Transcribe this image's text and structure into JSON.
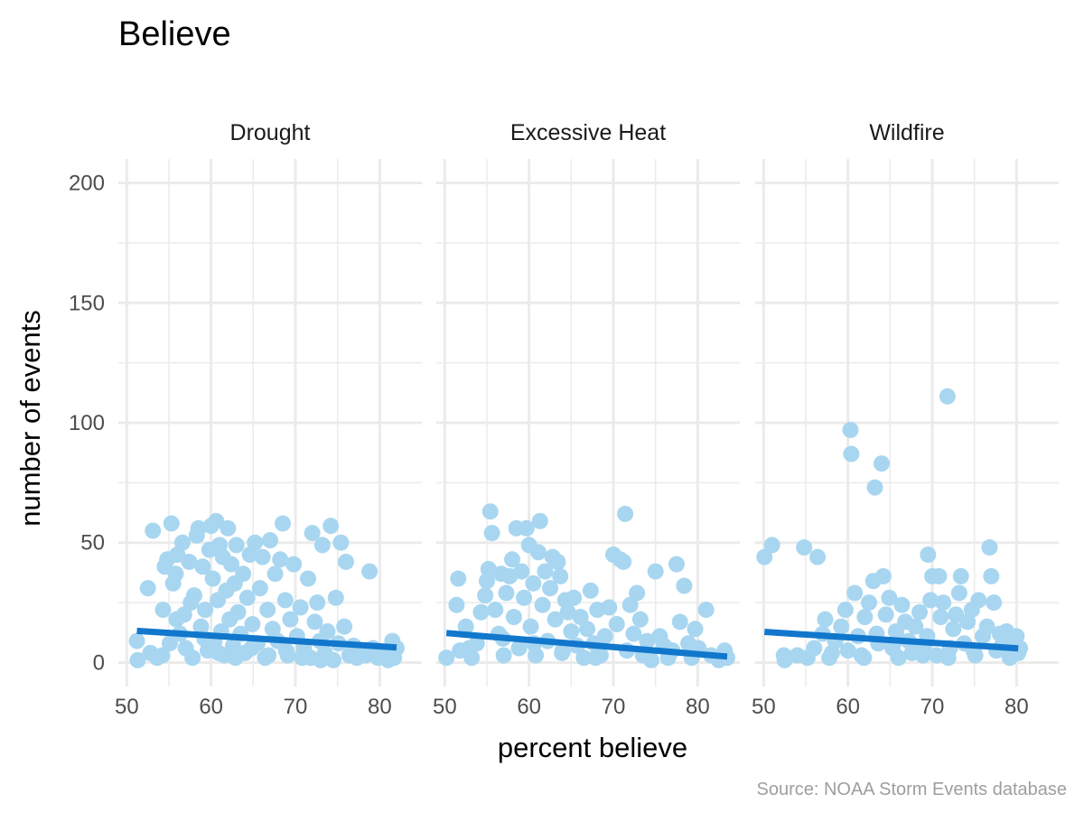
{
  "chart_data": {
    "type": "scatter",
    "title": "Believe",
    "xlabel": "percent believe",
    "ylabel": "number of events",
    "caption": "Source: NOAA Storm Events database",
    "xlim": [
      49,
      85
    ],
    "ylim": [
      -10,
      210
    ],
    "x_ticks": [
      50,
      60,
      70,
      80
    ],
    "y_ticks": [
      0,
      50,
      100,
      150,
      200
    ],
    "grid": true,
    "point_color": "#a8d6f0",
    "trend_color": "#1177cc",
    "grid_color": "#ebebeb",
    "panels": [
      {
        "name": "Drought",
        "trend": {
          "x": [
            51.2,
            82
          ],
          "y": [
            13.2,
            6.3
          ]
        },
        "points": [
          [
            51.2,
            9
          ],
          [
            51.3,
            1
          ],
          [
            52.5,
            31
          ],
          [
            52.8,
            4
          ],
          [
            53.1,
            55
          ],
          [
            54.2,
            3
          ],
          [
            54.3,
            22
          ],
          [
            54.5,
            40
          ],
          [
            54.8,
            43
          ],
          [
            55.1,
            8
          ],
          [
            55.3,
            58
          ],
          [
            55.5,
            33
          ],
          [
            55.8,
            37
          ],
          [
            56,
            45
          ],
          [
            56.3,
            12
          ],
          [
            56.6,
            50
          ],
          [
            56.8,
            20
          ],
          [
            57,
            6
          ],
          [
            57.4,
            42
          ],
          [
            57.8,
            2
          ],
          [
            58,
            28
          ],
          [
            58.3,
            53
          ],
          [
            58.5,
            56
          ],
          [
            58.8,
            15
          ],
          [
            59,
            40
          ],
          [
            59.3,
            22
          ],
          [
            59.6,
            5
          ],
          [
            59.8,
            47
          ],
          [
            60,
            57
          ],
          [
            60.2,
            35
          ],
          [
            60.4,
            9
          ],
          [
            60.6,
            59
          ],
          [
            60.8,
            26
          ],
          [
            61,
            49
          ],
          [
            61.2,
            13
          ],
          [
            61.4,
            44
          ],
          [
            61.6,
            3
          ],
          [
            61.8,
            30
          ],
          [
            62,
            56
          ],
          [
            62.2,
            18
          ],
          [
            62.4,
            41
          ],
          [
            62.6,
            7
          ],
          [
            62.8,
            33
          ],
          [
            63,
            49
          ],
          [
            63.2,
            21
          ],
          [
            63.5,
            12
          ],
          [
            63.8,
            37
          ],
          [
            64,
            4
          ],
          [
            64.3,
            27
          ],
          [
            64.6,
            45
          ],
          [
            64.9,
            16
          ],
          [
            65.2,
            50
          ],
          [
            65.5,
            8
          ],
          [
            65.8,
            31
          ],
          [
            66.1,
            44
          ],
          [
            66.4,
            2
          ],
          [
            66.7,
            22
          ],
          [
            67,
            51
          ],
          [
            67.3,
            14
          ],
          [
            67.6,
            37
          ],
          [
            67.9,
            9
          ],
          [
            68.2,
            43
          ],
          [
            68.5,
            58
          ],
          [
            68.8,
            26
          ],
          [
            69.1,
            3
          ],
          [
            69.4,
            18
          ],
          [
            69.8,
            41
          ],
          [
            70.2,
            11
          ],
          [
            70.6,
            23
          ],
          [
            71,
            6
          ],
          [
            71.5,
            35
          ],
          [
            71.8,
            2
          ],
          [
            72,
            54
          ],
          [
            72.3,
            17
          ],
          [
            72.6,
            25
          ],
          [
            72.9,
            9
          ],
          [
            73.2,
            49
          ],
          [
            73.5,
            4
          ],
          [
            73.8,
            13
          ],
          [
            74.2,
            57
          ],
          [
            74.5,
            1
          ],
          [
            74.8,
            27
          ],
          [
            75.1,
            8
          ],
          [
            75.4,
            50
          ],
          [
            75.8,
            15
          ],
          [
            76,
            42
          ],
          [
            76.4,
            3
          ],
          [
            76.9,
            7
          ],
          [
            77.3,
            2
          ],
          [
            77.8,
            5
          ],
          [
            78.3,
            3
          ],
          [
            78.8,
            38
          ],
          [
            79.2,
            6
          ],
          [
            79.8,
            2
          ],
          [
            80.4,
            4
          ],
          [
            81,
            1
          ],
          [
            81.5,
            9
          ],
          [
            81.7,
            2
          ],
          [
            82,
            6
          ],
          [
            53.6,
            2
          ],
          [
            55.9,
            18
          ],
          [
            57.6,
            25
          ],
          [
            59.2,
            10
          ],
          [
            60.9,
            4
          ],
          [
            62.9,
            2
          ],
          [
            64.8,
            6
          ],
          [
            66.8,
            3
          ],
          [
            68.9,
            5
          ],
          [
            70.8,
            2
          ],
          [
            73,
            1
          ]
        ]
      },
      {
        "name": "Excessive Heat",
        "trend": {
          "x": [
            50.2,
            83.5
          ],
          "y": [
            12.3,
            2.5
          ]
        },
        "points": [
          [
            50.2,
            2
          ],
          [
            51.4,
            24
          ],
          [
            51.6,
            35
          ],
          [
            51.8,
            5
          ],
          [
            52.5,
            15
          ],
          [
            53.2,
            2
          ],
          [
            53.8,
            8
          ],
          [
            54.3,
            21
          ],
          [
            54.8,
            28
          ],
          [
            55,
            34
          ],
          [
            55.2,
            39
          ],
          [
            55.4,
            63
          ],
          [
            55.6,
            54
          ],
          [
            56,
            22
          ],
          [
            56.4,
            12
          ],
          [
            56.7,
            37
          ],
          [
            57,
            3
          ],
          [
            57.3,
            29
          ],
          [
            57.7,
            36
          ],
          [
            58,
            43
          ],
          [
            58.2,
            19
          ],
          [
            58.5,
            56
          ],
          [
            58.8,
            6
          ],
          [
            59.1,
            38
          ],
          [
            59.4,
            27
          ],
          [
            59.7,
            56
          ],
          [
            60,
            49
          ],
          [
            60.2,
            15
          ],
          [
            60.5,
            33
          ],
          [
            60.8,
            3
          ],
          [
            61.1,
            46
          ],
          [
            61.3,
            59
          ],
          [
            61.6,
            24
          ],
          [
            61.9,
            38
          ],
          [
            62.2,
            9
          ],
          [
            62.5,
            31
          ],
          [
            62.8,
            44
          ],
          [
            63.1,
            18
          ],
          [
            63.4,
            42
          ],
          [
            63.7,
            36
          ],
          [
            64,
            5
          ],
          [
            64.3,
            26
          ],
          [
            64.6,
            21
          ],
          [
            65,
            13
          ],
          [
            65.3,
            27
          ],
          [
            65.7,
            7
          ],
          [
            66.1,
            19
          ],
          [
            66.5,
            2
          ],
          [
            66.9,
            14
          ],
          [
            67.3,
            30
          ],
          [
            67.7,
            8
          ],
          [
            68.1,
            22
          ],
          [
            68.5,
            3
          ],
          [
            69,
            11
          ],
          [
            69.5,
            23
          ],
          [
            70,
            45
          ],
          [
            70.4,
            16
          ],
          [
            70.8,
            43
          ],
          [
            71.2,
            42
          ],
          [
            71.4,
            62
          ],
          [
            71.6,
            5
          ],
          [
            72,
            24
          ],
          [
            72.4,
            12
          ],
          [
            72.8,
            29
          ],
          [
            73.2,
            18
          ],
          [
            73.5,
            3
          ],
          [
            74,
            9
          ],
          [
            74.5,
            1
          ],
          [
            75,
            38
          ],
          [
            75.5,
            11
          ],
          [
            76,
            7
          ],
          [
            76.5,
            2
          ],
          [
            77,
            5
          ],
          [
            77.5,
            41
          ],
          [
            77.9,
            17
          ],
          [
            78.4,
            32
          ],
          [
            78.9,
            8
          ],
          [
            79.3,
            2
          ],
          [
            79.7,
            14
          ],
          [
            80.1,
            6
          ],
          [
            81,
            22
          ],
          [
            81.6,
            3
          ],
          [
            82.5,
            1
          ],
          [
            83.2,
            5
          ],
          [
            83.5,
            2
          ],
          [
            52.9,
            6
          ],
          [
            56.9,
            10
          ],
          [
            60.6,
            8
          ],
          [
            63.9,
            4
          ],
          [
            67.9,
            2
          ]
        ]
      },
      {
        "name": "Wildfire",
        "trend": {
          "x": [
            50.1,
            80.2
          ],
          "y": [
            12.8,
            5.9
          ]
        },
        "points": [
          [
            50.1,
            44
          ],
          [
            51,
            49
          ],
          [
            52.4,
            3
          ],
          [
            52.5,
            1
          ],
          [
            54,
            3
          ],
          [
            54.8,
            48
          ],
          [
            55.2,
            2
          ],
          [
            56,
            6
          ],
          [
            56.4,
            44
          ],
          [
            57,
            12
          ],
          [
            57.3,
            18
          ],
          [
            57.8,
            2
          ],
          [
            58.5,
            9
          ],
          [
            59.2,
            15
          ],
          [
            59.7,
            22
          ],
          [
            60,
            5
          ],
          [
            60.3,
            97
          ],
          [
            60.4,
            87
          ],
          [
            60.8,
            29
          ],
          [
            61.2,
            11
          ],
          [
            61.6,
            3
          ],
          [
            62,
            19
          ],
          [
            62.5,
            25
          ],
          [
            63,
            34
          ],
          [
            63.2,
            73
          ],
          [
            63.6,
            8
          ],
          [
            64,
            83
          ],
          [
            64.2,
            36
          ],
          [
            64.5,
            20
          ],
          [
            64.9,
            27
          ],
          [
            65.3,
            6
          ],
          [
            65.7,
            13
          ],
          [
            66,
            2
          ],
          [
            66.4,
            24
          ],
          [
            66.8,
            17
          ],
          [
            67.2,
            9
          ],
          [
            67.6,
            4
          ],
          [
            68,
            15
          ],
          [
            68.5,
            21
          ],
          [
            69,
            7
          ],
          [
            69.4,
            11
          ],
          [
            69.5,
            45
          ],
          [
            69.8,
            26
          ],
          [
            70,
            36
          ],
          [
            70.5,
            3
          ],
          [
            70.8,
            36
          ],
          [
            71,
            19
          ],
          [
            71.3,
            25
          ],
          [
            71.8,
            111
          ],
          [
            72.1,
            6
          ],
          [
            72.5,
            14
          ],
          [
            72.8,
            20
          ],
          [
            73.2,
            29
          ],
          [
            73.4,
            36
          ],
          [
            73.8,
            8
          ],
          [
            74.2,
            17
          ],
          [
            74.7,
            22
          ],
          [
            75.1,
            3
          ],
          [
            75.5,
            26
          ],
          [
            76,
            11
          ],
          [
            76.5,
            15
          ],
          [
            76.8,
            48
          ],
          [
            77,
            36
          ],
          [
            77.3,
            25
          ],
          [
            77.6,
            5
          ],
          [
            78,
            12
          ],
          [
            78.4,
            8
          ],
          [
            78.8,
            13
          ],
          [
            79.2,
            2
          ],
          [
            79.6,
            6
          ],
          [
            80,
            11
          ],
          [
            80.2,
            4
          ],
          [
            80.4,
            6
          ],
          [
            58.1,
            4
          ],
          [
            61.9,
            2
          ],
          [
            65.9,
            10
          ],
          [
            68.9,
            3
          ],
          [
            71.9,
            2
          ],
          [
            74.9,
            5
          ],
          [
            63.4,
            12
          ]
        ]
      }
    ]
  }
}
